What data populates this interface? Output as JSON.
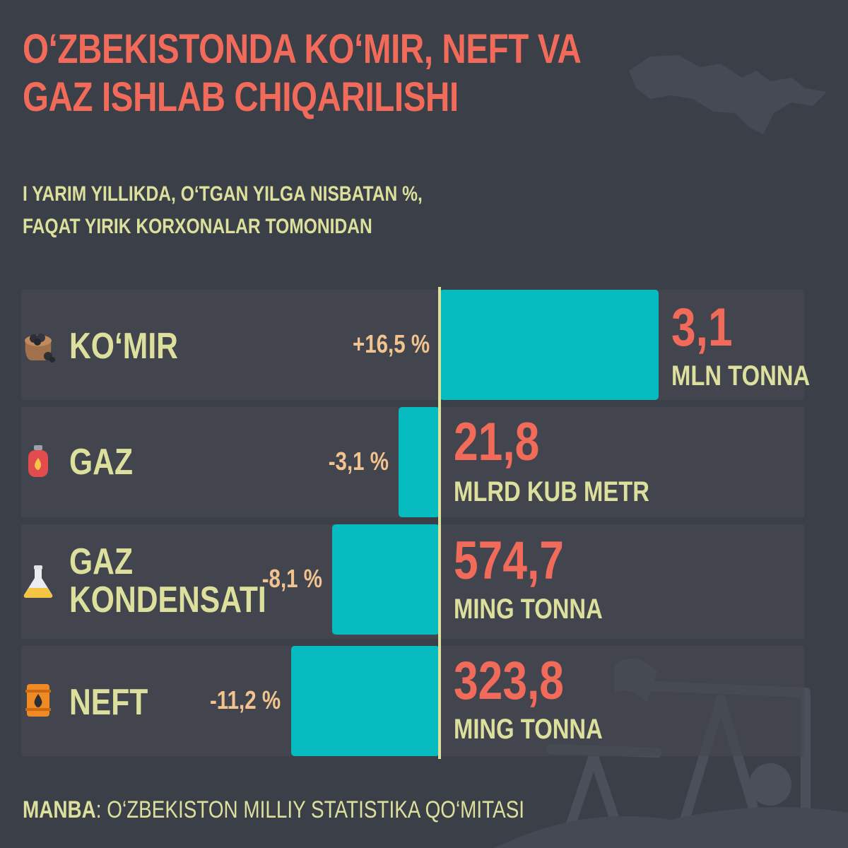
{
  "title": "O‘ZBEKISTONDA KO‘MIR, NEFT VA GAZ ISHLAB CHIQARILISHI",
  "subtitle_lines": [
    "I YARIM YILLIKDA, O‘TGAN YILGA NISBATAN %,",
    "FAQAT YIRIK KORXONALAR TOMONIDAN"
  ],
  "source": {
    "label": "MANBA",
    "separator": ": ",
    "text": "O‘ZBEKISTON MILLIY STATISTIKA QO‘MITASI"
  },
  "colors": {
    "background": "#3a3f48",
    "title": "#f26b5a",
    "text": "#dde09c",
    "bar": "#06bcc1",
    "percent": "#f2c28f",
    "value": "#f26b5a"
  },
  "icons": [
    "coal-sack-icon",
    "gas-cylinder-icon",
    "flask-icon",
    "oil-barrel-icon"
  ],
  "chart_data": {
    "type": "bar",
    "orientation": "horizontal-diverging",
    "categories": [
      "KO‘MIR",
      "GAZ",
      "GAZ KONDENSATI",
      "NEFT"
    ],
    "category_lines": [
      [
        "KO‘MIR"
      ],
      [
        "GAZ"
      ],
      [
        "GAZ",
        "KONDENSATI"
      ],
      [
        "NEFT"
      ]
    ],
    "values": [
      16.5,
      -3.1,
      -8.1,
      -11.2
    ],
    "value_labels": [
      "+16,5 %",
      "-3,1 %",
      "-8,1 %",
      "-11,2 %"
    ],
    "production": [
      {
        "amount": "3,1",
        "unit": "MLN TONNA"
      },
      {
        "amount": "21,8",
        "unit": "MLRD KUB METR"
      },
      {
        "amount": "574,7",
        "unit": "MING TONNA"
      },
      {
        "amount": "323,8",
        "unit": "MING TONNA"
      }
    ],
    "baseline": 0,
    "grid": false
  }
}
